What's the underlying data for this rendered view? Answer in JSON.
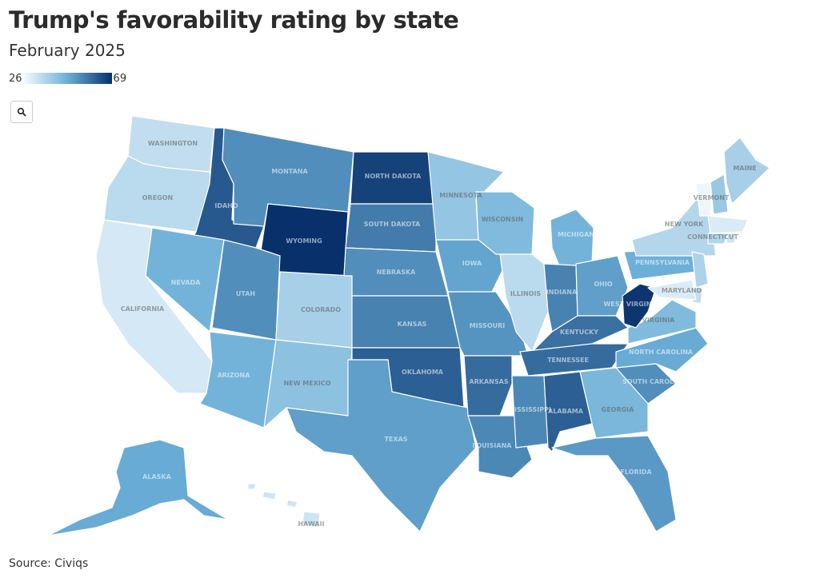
{
  "title": "Trump's favorability rating by state",
  "subtitle": "February 2025",
  "legend": {
    "min_label": "26",
    "max_label": "69",
    "min": 26,
    "max": 69
  },
  "source": "Source: Civiqs",
  "zoom_icon": "search-icon",
  "colors": {
    "low": "#f4f9fe",
    "mid": "#6aaed6",
    "high": "#08306b"
  },
  "map_data": {
    "type": "choropleth",
    "metric": "favorability",
    "labels": {
      "WA": "WASHINGTON",
      "OR": "OREGON",
      "CA": "CALIFORNIA",
      "ID": "IDAHO",
      "NV": "NEVADA",
      "MT": "MONTANA",
      "WY": "WYOMING",
      "UT": "UTAH",
      "AZ": "ARIZONA",
      "CO": "COLORADO",
      "NM": "NEW MEXICO",
      "ND": "NORTH DAKOTA",
      "SD": "SOUTH DAKOTA",
      "NE": "NEBRASKA",
      "KS": "KANSAS",
      "OK": "OKLAHOMA",
      "TX": "TEXAS",
      "MN": "MINNESOTA",
      "IA": "IOWA",
      "MO": "MISSOURI",
      "AR": "ARKANSAS",
      "LA": "LOUISIANA",
      "WI": "WISCONSIN",
      "IL": "ILLINOIS",
      "MI": "MICHIGAN",
      "IN": "INDIANA",
      "OH": "OHIO",
      "KY": "KENTUCKY",
      "TN": "TENNESSEE",
      "MS": "MISSISSIPPI",
      "AL": "ALABAMA",
      "GA": "GEORGIA",
      "FL": "FLORIDA",
      "SC": "SOUTH CAROLINA",
      "NC": "NORTH CAROLINA",
      "VA": "VIRGINIA",
      "WV": "WEST VIRGINIA",
      "PA": "PENNSYLVANIA",
      "NY": "NEW YORK",
      "VT": "VERMONT",
      "ME": "MAINE",
      "CT": "CONNECTICUT",
      "MD": "MARYLAND",
      "AK": "ALASKA",
      "HI": "HAWAII"
    },
    "values": {
      "WA": 34,
      "OR": 35,
      "CA": 31,
      "ID": 62,
      "NV": 46,
      "MT": 53,
      "WY": 69,
      "UT": 53,
      "AZ": 46,
      "CO": 38,
      "NM": 42,
      "ND": 66,
      "SD": 56,
      "NE": 53,
      "KS": 55,
      "OK": 61,
      "TX": 50,
      "MN": 41,
      "IA": 49,
      "MO": 52,
      "AR": 59,
      "LA": 54,
      "WI": 44,
      "IL": 35,
      "MI": 46,
      "IN": 55,
      "OH": 50,
      "KY": 58,
      "TN": 59,
      "MS": 54,
      "AL": 61,
      "GA": 45,
      "FL": 51,
      "SC": 53,
      "NC": 48,
      "VA": 44,
      "WV": 68,
      "PA": 47,
      "NY": 36,
      "VT": 27,
      "ME": 38,
      "NH": 40,
      "MA": 30,
      "CT": 36,
      "RI": 32,
      "NJ": 37,
      "DE": 34,
      "MD": 30,
      "AK": 48,
      "HI": 32
    }
  }
}
